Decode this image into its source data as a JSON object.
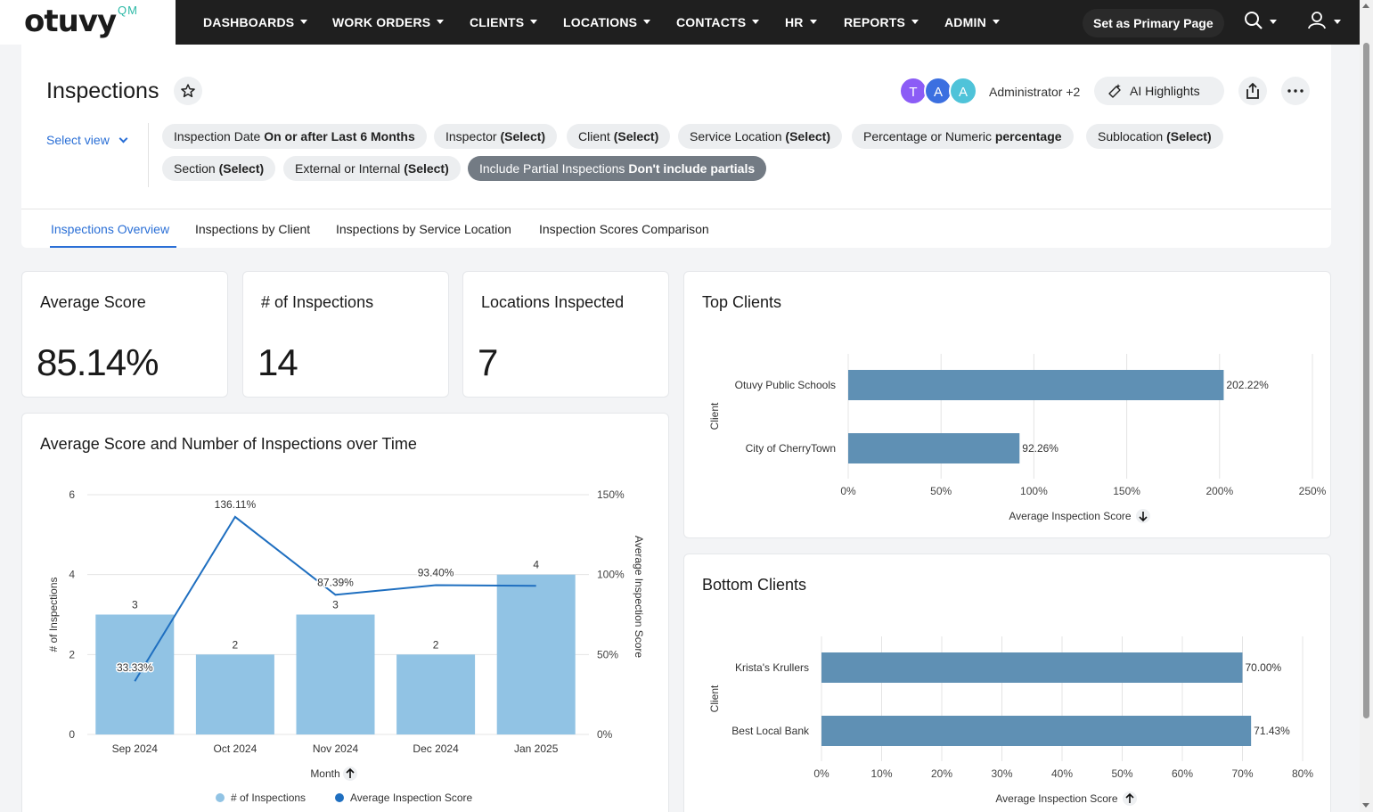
{
  "nav": {
    "logo_text": "otuvy",
    "logo_suffix": "QM",
    "items": [
      {
        "label": "DASHBOARDS"
      },
      {
        "label": "WORK ORDERS"
      },
      {
        "label": "CLIENTS"
      },
      {
        "label": "LOCATIONS"
      },
      {
        "label": "CONTACTS"
      },
      {
        "label": "HR"
      },
      {
        "label": "REPORTS"
      },
      {
        "label": "ADMIN"
      }
    ],
    "primary_button": "Set as Primary Page",
    "search_icon": "search-icon",
    "user_icon": "user-icon"
  },
  "header": {
    "title": "Inspections",
    "avatars": [
      {
        "initial": "T",
        "color": "#8b5cf6"
      },
      {
        "initial": "A",
        "color": "#3b6fe0"
      },
      {
        "initial": "A",
        "color": "#4fc3d9"
      }
    ],
    "shared_with": "Administrator +2",
    "ai_button": "AI Highlights",
    "select_view": "Select view"
  },
  "filters": [
    {
      "name": "Inspection Date",
      "value": "On or after Last 6 Months",
      "active": false
    },
    {
      "name": "Inspector",
      "value": "(Select)",
      "active": false
    },
    {
      "name": "Client",
      "value": "(Select)",
      "active": false
    },
    {
      "name": "Service Location",
      "value": "(Select)",
      "active": false
    },
    {
      "name": "Percentage or Numeric",
      "value": "percentage",
      "active": false
    },
    {
      "name": "Sublocation",
      "value": "(Select)",
      "active": false
    },
    {
      "name": "Section",
      "value": "(Select)",
      "active": false
    },
    {
      "name": "External or Internal",
      "value": "(Select)",
      "active": false
    },
    {
      "name": "Include Partial Inspections",
      "value": "Don't include partials",
      "active": true
    }
  ],
  "tabs": [
    {
      "label": "Inspections Overview",
      "active": true
    },
    {
      "label": "Inspections by Client",
      "active": false
    },
    {
      "label": "Inspections by Service Location",
      "active": false
    },
    {
      "label": "Inspection Scores Comparison",
      "active": false
    }
  ],
  "kpis": {
    "average_score": {
      "title": "Average Score",
      "value": "85.14%"
    },
    "num_inspections": {
      "title": "# of Inspections",
      "value": "14"
    },
    "locations_inspected": {
      "title": "Locations Inspected",
      "value": "7"
    }
  },
  "chart_data": [
    {
      "type": "bar",
      "title": "Average Score and Number of Inspections over Time",
      "categories": [
        "Sep 2024",
        "Oct 2024",
        "Nov 2024",
        "Dec 2024",
        "Jan 2025"
      ],
      "xlabel": "Month",
      "ylabel": "# of Inspections",
      "y2label": "Average Inspection Score",
      "ylim": [
        0,
        6
      ],
      "y2lim": [
        0,
        150
      ],
      "yticks": [
        "0",
        "2",
        "4",
        "6"
      ],
      "y2ticks": [
        "0%",
        "50%",
        "100%",
        "150%"
      ],
      "series": [
        {
          "name": "# of Inspections",
          "type": "bar",
          "axis": "left",
          "values": [
            3,
            2,
            3,
            2,
            4
          ],
          "labels": [
            "3",
            "2",
            "3",
            "2",
            "4"
          ],
          "color": "#91c3e4"
        },
        {
          "name": "Average Inspection Score",
          "type": "line",
          "axis": "right",
          "values": [
            33.33,
            136.11,
            87.39,
            93.4,
            93.0
          ],
          "labels": [
            "33.33%",
            "136.11%",
            "87.39%",
            "93.40%",
            ""
          ],
          "color": "#1f6fc0"
        }
      ],
      "legend": "bottom"
    },
    {
      "type": "bar",
      "orientation": "horizontal",
      "title": "Top Clients",
      "categories": [
        "Otuvy Public Schools",
        "City of CherryTown"
      ],
      "values": [
        202.22,
        92.26
      ],
      "labels": [
        "202.22%",
        "92.26%"
      ],
      "xlabel": "Average Inspection Score",
      "ylabel": "Client",
      "xlim": [
        0,
        250
      ],
      "xticks": [
        "0%",
        "50%",
        "100%",
        "150%",
        "200%",
        "250%"
      ],
      "sort": "descending",
      "color": "#5f90b4"
    },
    {
      "type": "bar",
      "orientation": "horizontal",
      "title": "Bottom Clients",
      "categories": [
        "Krista's Krullers",
        "Best Local Bank"
      ],
      "values": [
        70.0,
        71.43
      ],
      "labels": [
        "70.00%",
        "71.43%"
      ],
      "xlabel": "Average Inspection Score",
      "ylabel": "Client",
      "xlim": [
        0,
        80
      ],
      "xticks": [
        "0%",
        "10%",
        "20%",
        "30%",
        "40%",
        "50%",
        "60%",
        "70%",
        "80%"
      ],
      "sort": "ascending",
      "color": "#5f90b4"
    }
  ]
}
